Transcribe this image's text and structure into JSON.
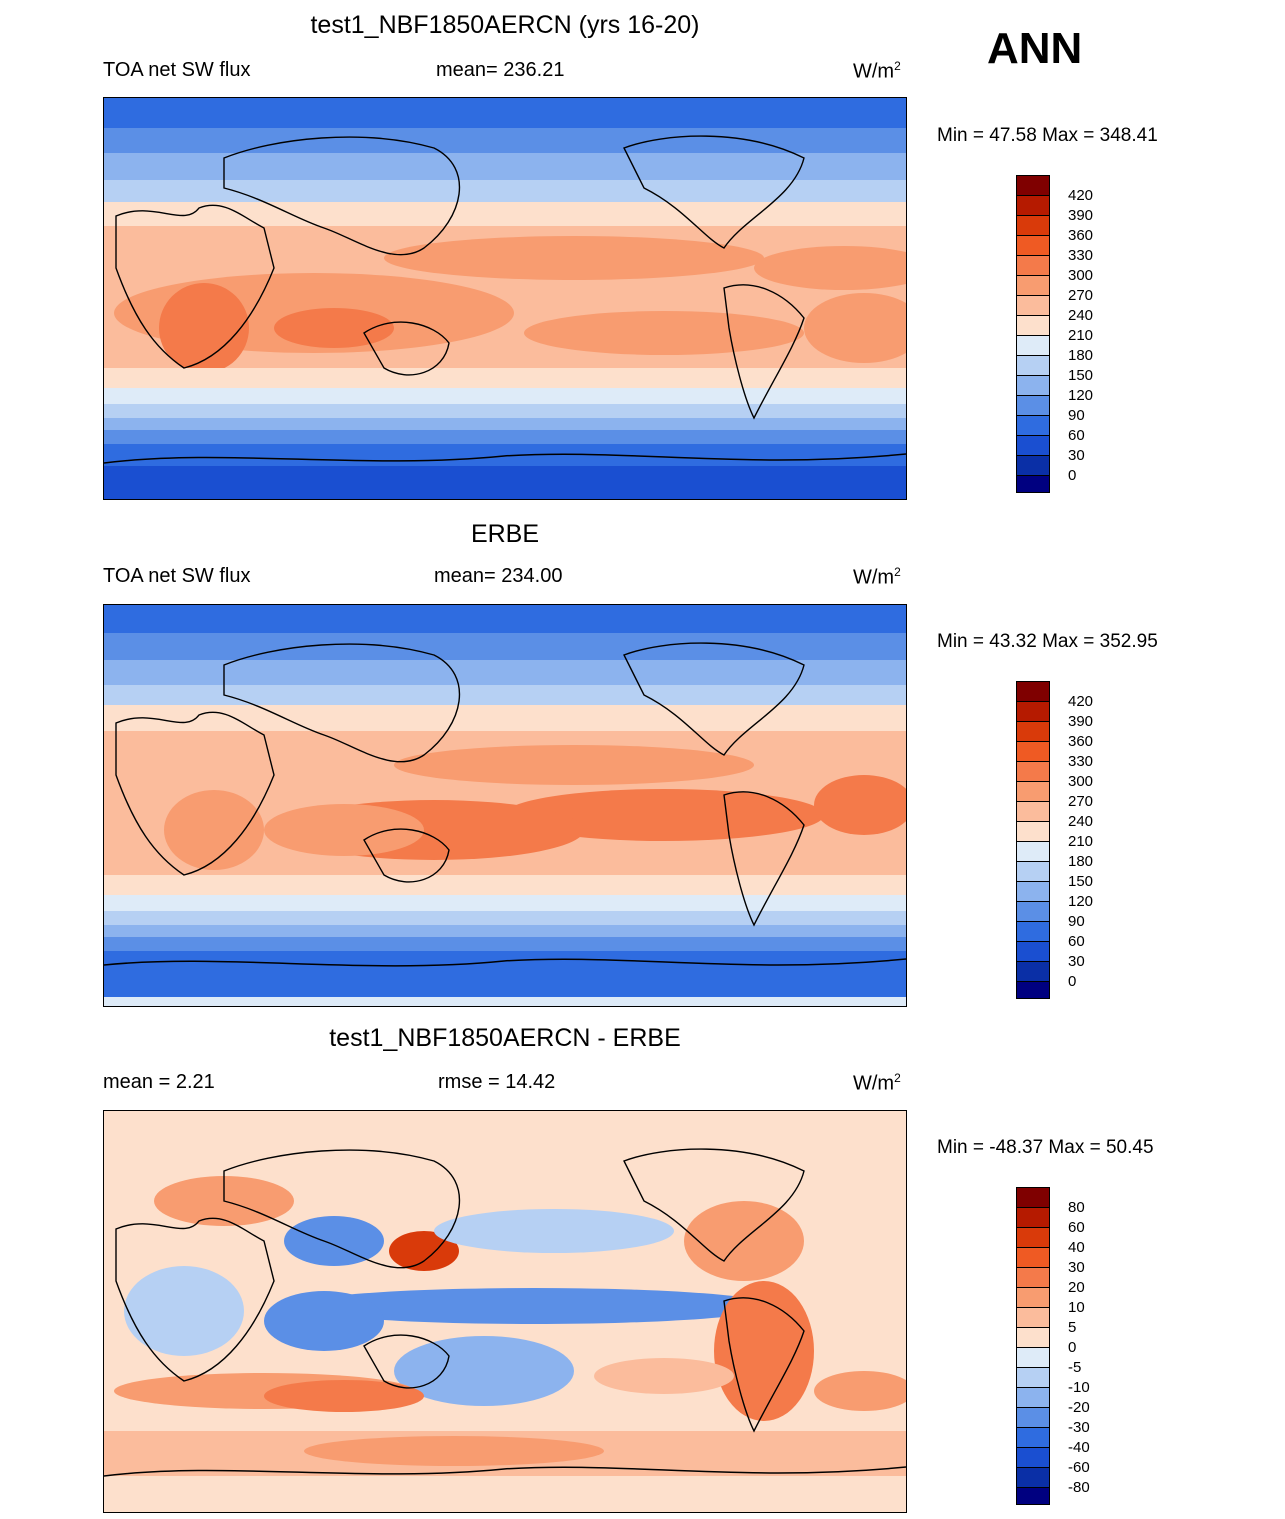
{
  "season": "ANN",
  "units_main": "W/m",
  "units_sup": "2",
  "panels": [
    {
      "id": "model",
      "title": "test1_NBF1850AERCN (yrs 16-20)",
      "left_label": "TOA net SW flux",
      "center_label": "mean= 236.21",
      "min_max": "Min =  47.58 Max = 348.41",
      "colorbar_levels": [
        "420",
        "390",
        "360",
        "330",
        "300",
        "270",
        "240",
        "210",
        "180",
        "150",
        "120",
        "90",
        "60",
        "30",
        "0"
      ]
    },
    {
      "id": "obs",
      "title": "ERBE",
      "left_label": "TOA net SW flux",
      "center_label": "mean= 234.00",
      "min_max": "Min =  43.32 Max = 352.95",
      "colorbar_levels": [
        "420",
        "390",
        "360",
        "330",
        "300",
        "270",
        "240",
        "210",
        "180",
        "150",
        "120",
        "90",
        "60",
        "30",
        "0"
      ]
    },
    {
      "id": "diff",
      "title": "test1_NBF1850AERCN - ERBE",
      "left_label": "mean =   2.21",
      "center_label": "rmse =  14.42",
      "min_max": "Min = -48.37 Max =  50.45",
      "colorbar_levels": [
        "80",
        "60",
        "40",
        "30",
        "20",
        "10",
        "5",
        "0",
        "-5",
        "-10",
        "-20",
        "-30",
        "-40",
        "-60",
        "-80"
      ]
    }
  ],
  "colors": {
    "abs_scale": [
      "#7f0000",
      "#b51a00",
      "#d93a0a",
      "#ef5a23",
      "#f47a4a",
      "#f89c70",
      "#fbbc9c",
      "#fde0cc",
      "#deebf8",
      "#b6d0f3",
      "#8cb3ee",
      "#5b8fe6",
      "#2f6ce0",
      "#1a4fd1",
      "#0a2fa6",
      "#000080"
    ],
    "diff_scale": [
      "#7f0000",
      "#b51a00",
      "#d93a0a",
      "#ef5a23",
      "#f47a4a",
      "#f89c70",
      "#fbbc9c",
      "#fde0cc",
      "#ffffff",
      "#deebf8",
      "#b6d0f3",
      "#8cb3ee",
      "#5b8fe6",
      "#2f6ce0",
      "#1a4fd1",
      "#0a2fa6",
      "#000080"
    ]
  }
}
